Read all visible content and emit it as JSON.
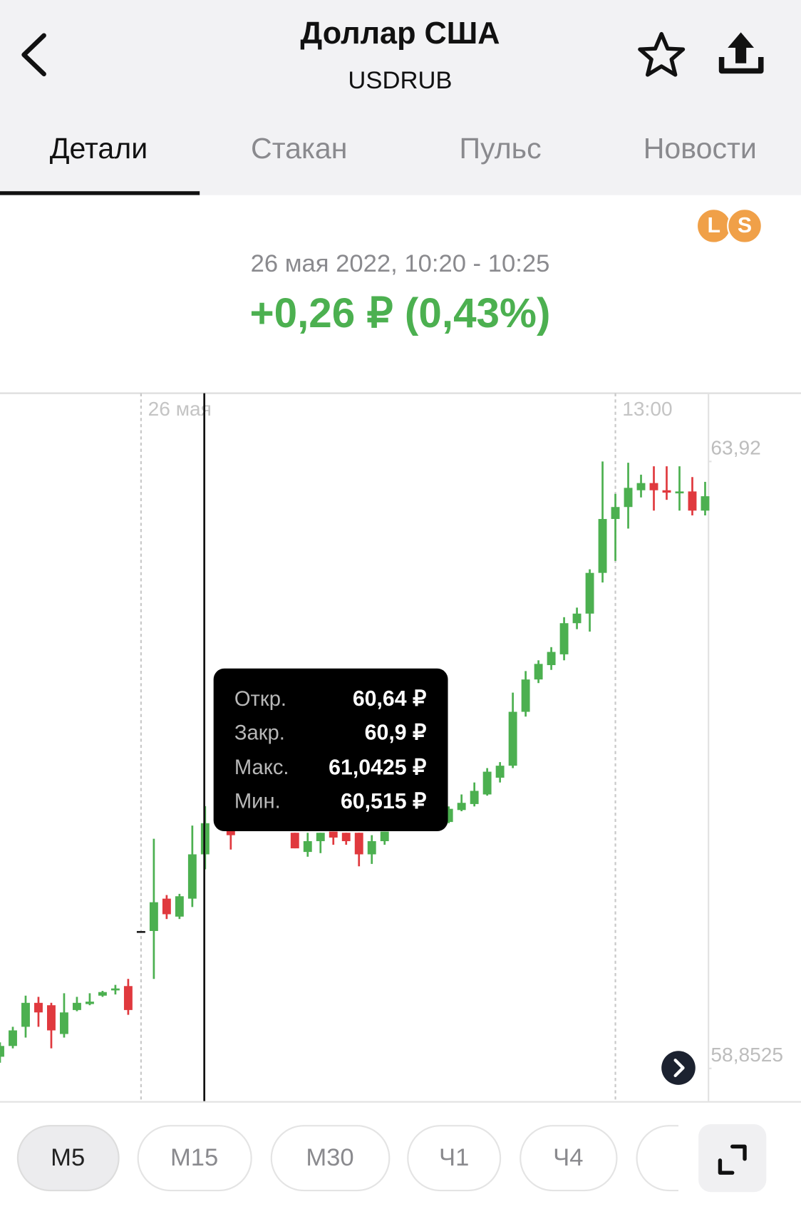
{
  "header": {
    "title": "Доллар США",
    "subtitle": "USDRUB"
  },
  "tabs": [
    "Детали",
    "Стакан",
    "Пульс",
    "Новости"
  ],
  "badges": [
    "L",
    "S"
  ],
  "period": "26 мая 2022, 10:20 - 10:25",
  "change": "+0,26 ₽ (0,43%)",
  "tooltip": [
    {
      "label": "Откр.",
      "value": "60,64 ₽"
    },
    {
      "label": "Закр.",
      "value": "60,9 ₽"
    },
    {
      "label": "Макс.",
      "value": "61,0425 ₽"
    },
    {
      "label": "Мин.",
      "value": "60,515 ₽"
    }
  ],
  "intervals": [
    "М5",
    "М15",
    "М30",
    "Ч1",
    "Ч4"
  ],
  "chart_data": {
    "type": "candlestick",
    "categories": [
      null,
      null,
      null,
      null,
      null,
      null,
      null,
      null,
      null,
      null,
      null,
      "26 мая",
      null,
      null,
      null,
      null,
      null,
      null,
      null,
      null,
      null,
      null,
      null,
      null,
      null,
      null,
      null,
      null,
      null,
      null,
      null,
      null,
      null,
      null,
      null,
      null,
      null,
      null,
      null,
      null,
      null,
      null,
      null,
      null,
      null,
      null,
      null,
      null,
      "13:00",
      null,
      null,
      null,
      null,
      null,
      null,
      null
    ],
    "open": [
      58.95,
      59.04,
      59.2,
      59.4,
      59.38,
      59.14,
      59.34,
      59.39,
      59.46,
      59.51,
      59.54,
      60.0,
      60.0,
      60.27,
      60.12,
      60.27,
      60.64,
      null,
      60.85,
      null,
      null,
      null,
      null,
      60.82,
      60.66,
      60.75,
      60.83,
      60.82,
      60.82,
      60.64,
      60.75,
      null,
      null,
      null,
      null,
      60.91,
      61.01,
      61.06,
      61.14,
      61.28,
      61.38,
      61.83,
      62.1,
      62.22,
      62.31,
      62.57,
      62.65,
      62.99,
      63.44,
      63.54,
      63.68,
      63.74,
      63.68,
      63.66,
      63.67,
      63.51
    ],
    "high": [
      59.07,
      59.2,
      59.46,
      59.45,
      59.4,
      59.48,
      59.45,
      59.48,
      59.5,
      59.55,
      59.6,
      60.0,
      60.77,
      60.3,
      60.31,
      60.88,
      61.0425,
      null,
      60.9,
      null,
      null,
      null,
      null,
      60.82,
      60.82,
      60.82,
      60.83,
      60.82,
      60.82,
      60.8,
      60.83,
      null,
      null,
      null,
      null,
      61.04,
      61.14,
      61.24,
      61.36,
      61.41,
      61.99,
      62.17,
      62.26,
      62.37,
      62.62,
      62.7,
      63.02,
      63.92,
      63.65,
      63.91,
      63.81,
      63.88,
      63.88,
      63.88,
      63.79,
      63.75
    ],
    "low": [
      58.9,
      59.02,
      59.11,
      59.2,
      59.02,
      59.11,
      59.33,
      59.38,
      59.45,
      59.47,
      59.3,
      60.0,
      59.6,
      60.1,
      60.1,
      60.2,
      60.515,
      null,
      60.68,
      null,
      null,
      null,
      null,
      60.69,
      60.62,
      60.65,
      60.72,
      60.72,
      60.54,
      60.56,
      60.72,
      null,
      null,
      null,
      null,
      60.9,
      61.0,
      61.04,
      61.13,
      61.24,
      61.36,
      61.79,
      62.07,
      62.18,
      62.26,
      62.52,
      62.5,
      62.91,
      63.09,
      63.36,
      63.62,
      63.51,
      63.6,
      63.51,
      63.47,
      63.47
    ],
    "close": [
      59.04,
      59.17,
      59.4,
      59.32,
      59.17,
      59.32,
      59.4,
      59.41,
      59.49,
      59.52,
      59.34,
      60.0,
      60.24,
      60.14,
      60.29,
      60.64,
      60.9,
      null,
      60.8,
      null,
      null,
      null,
      null,
      60.69,
      60.75,
      60.82,
      60.78,
      60.75,
      60.64,
      60.75,
      60.83,
      null,
      null,
      null,
      null,
      61.02,
      61.07,
      61.17,
      61.33,
      61.38,
      61.83,
      62.1,
      62.23,
      62.33,
      62.57,
      62.65,
      62.99,
      63.44,
      63.54,
      63.7,
      63.74,
      63.68,
      63.66,
      63.67,
      63.51,
      63.63
    ],
    "ylim": [
      58.58,
      64.49
    ],
    "yticks": [
      {
        "value": 63.92,
        "label": "63,92"
      },
      {
        "value": 58.8525,
        "label": "58,8525"
      }
    ],
    "up_color": "#4cb050",
    "down_color": "#e0393e"
  }
}
